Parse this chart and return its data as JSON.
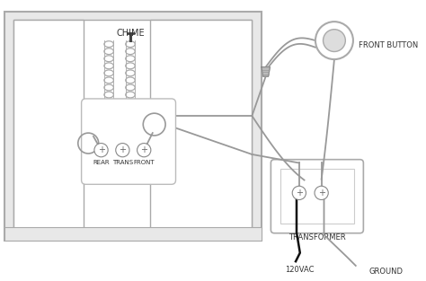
{
  "bg_color": "#ffffff",
  "wall_fill": "#e8e8e8",
  "wall_edge": "#aaaaaa",
  "white": "#ffffff",
  "wire_gray": "#999999",
  "wire_dark": "#555555",
  "wire_black": "#111111",
  "terminal_edge": "#777777",
  "text_color": "#333333",
  "coil_color": "#aaaaaa",
  "title": "CHIME",
  "label_front_button": "FRONT BUTTON",
  "label_transformer": "TRANSFORMER",
  "label_ground": "GROUND",
  "label_120vac": "120VAC",
  "label_rear": "REAR",
  "label_trans": "TRANS",
  "label_front": "FRONT"
}
